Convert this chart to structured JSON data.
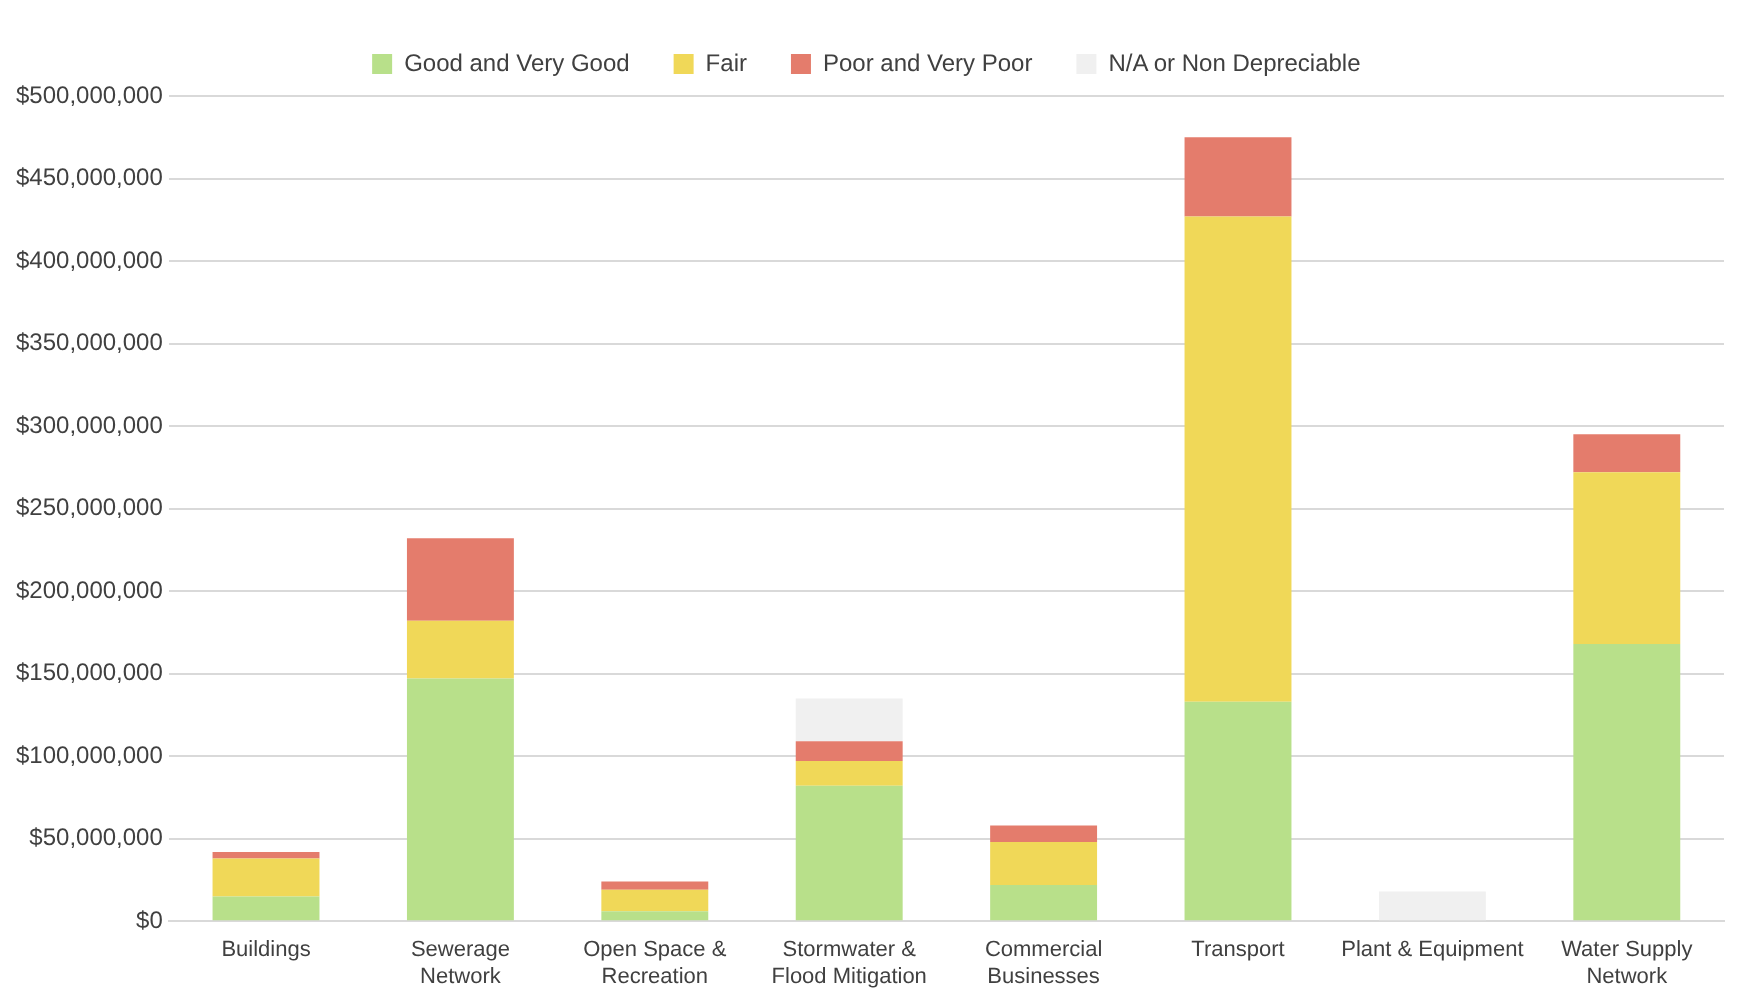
{
  "chart_data": {
    "type": "bar",
    "stacked": true,
    "categories": [
      "Buildings",
      "Sewerage Network",
      "Open Space & Recreation",
      "Stormwater & Flood Mitigation",
      "Commercial Businesses",
      "Transport",
      "Plant & Equipment",
      "Water Supply Network"
    ],
    "series": [
      {
        "name": "Good and Very Good",
        "color": "#b8e08a",
        "values": [
          15000000,
          147000000,
          6000000,
          82000000,
          22000000,
          133000000,
          null,
          168000000
        ]
      },
      {
        "name": "Fair",
        "color": "#f0d858",
        "values": [
          23000000,
          35000000,
          13000000,
          15000000,
          26000000,
          294000000,
          null,
          104000000
        ]
      },
      {
        "name": "Poor and Very Poor",
        "color": "#e47c6c",
        "values": [
          4000000,
          50000000,
          5000000,
          12000000,
          10000000,
          48000000,
          null,
          23000000
        ]
      },
      {
        "name": "N/A or Non Depreciable",
        "color": "#f0f0f0",
        "values": [
          null,
          null,
          null,
          26000000,
          null,
          null,
          18000000,
          null
        ]
      }
    ],
    "ylim": [
      0,
      500000000
    ],
    "yticks": [
      {
        "value": 0,
        "label": "$0"
      },
      {
        "value": 50000000,
        "label": "$50,000,000"
      },
      {
        "value": 100000000,
        "label": "$100,000,000"
      },
      {
        "value": 150000000,
        "label": "$150,000,000"
      },
      {
        "value": 200000000,
        "label": "$200,000,000"
      },
      {
        "value": 250000000,
        "label": "$250,000,000"
      },
      {
        "value": 300000000,
        "label": "$300,000,000"
      },
      {
        "value": 350000000,
        "label": "$350,000,000"
      },
      {
        "value": 400000000,
        "label": "$400,000,000"
      },
      {
        "value": 450000000,
        "label": "$450,000,000"
      },
      {
        "value": 500000000,
        "label": "$500,000,000"
      }
    ],
    "grid": "y",
    "legend": "top"
  }
}
